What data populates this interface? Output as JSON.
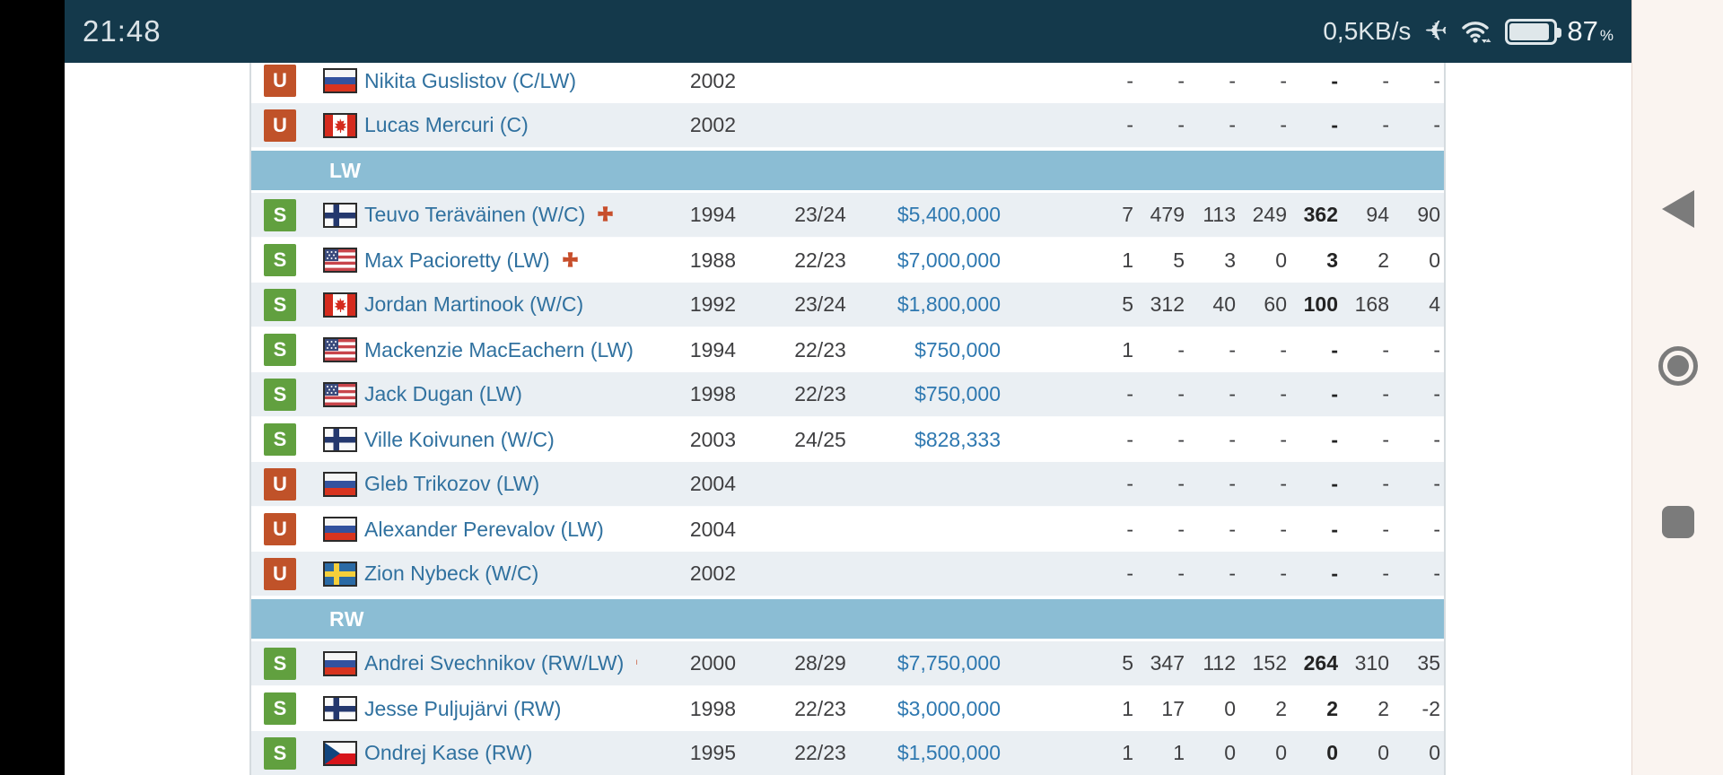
{
  "status_bar": {
    "time": "21:48",
    "network_speed": "0,5KB/s",
    "icons": [
      "airplane-icon",
      "wifi-icon",
      "battery-icon"
    ],
    "battery_percent": "87",
    "percent_sign": "%"
  },
  "nav_bar": {
    "buttons": [
      {
        "name": "back"
      },
      {
        "name": "home"
      },
      {
        "name": "recents"
      }
    ]
  },
  "colors": {
    "statusbar_bg": "#14394b",
    "section_header_bg": "#8bbdd4",
    "row_alt_bg": "#eaeff3",
    "badge_signed": "#61a03f",
    "badge_unsigned": "#c05229",
    "player_name_link": "#30719f",
    "salary_text": "#2e78b0",
    "injury_cross": "#c74e2b"
  },
  "table": {
    "rows": [
      {
        "type": "player",
        "shade": "white",
        "status": "U",
        "nation": "ru",
        "name": "Nikita Guslistov (C/LW)",
        "injured": false,
        "year": "2002",
        "contract": "",
        "salary": "",
        "stats": [
          "-",
          "-",
          "-",
          "-",
          "-",
          "-",
          "-"
        ]
      },
      {
        "type": "player",
        "shade": "gray",
        "status": "U",
        "nation": "ca",
        "name": "Lucas Mercuri (C)",
        "injured": false,
        "year": "2002",
        "contract": "",
        "salary": "",
        "stats": [
          "-",
          "-",
          "-",
          "-",
          "-",
          "-",
          "-"
        ]
      },
      {
        "type": "section",
        "label": "LW"
      },
      {
        "type": "player",
        "shade": "gray",
        "status": "S",
        "nation": "fi",
        "name": "Teuvo Teräväinen (W/C)",
        "injured": true,
        "year": "1994",
        "contract": "23/24",
        "salary": "$5,400,000",
        "stats": [
          "7",
          "479",
          "113",
          "249",
          "362",
          "94",
          "90"
        ]
      },
      {
        "type": "player",
        "shade": "white",
        "status": "S",
        "nation": "us",
        "name": "Max Pacioretty (LW)",
        "injured": true,
        "year": "1988",
        "contract": "22/23",
        "salary": "$7,000,000",
        "stats": [
          "1",
          "5",
          "3",
          "0",
          "3",
          "2",
          "0"
        ]
      },
      {
        "type": "player",
        "shade": "gray",
        "status": "S",
        "nation": "ca",
        "name": "Jordan Martinook (W/C)",
        "injured": false,
        "year": "1992",
        "contract": "23/24",
        "salary": "$1,800,000",
        "stats": [
          "5",
          "312",
          "40",
          "60",
          "100",
          "168",
          "4"
        ]
      },
      {
        "type": "player",
        "shade": "white",
        "status": "S",
        "nation": "us",
        "name": "Mackenzie MacEachern (LW)",
        "injured": false,
        "year": "1994",
        "contract": "22/23",
        "salary": "$750,000",
        "stats": [
          "1",
          "-",
          "-",
          "-",
          "-",
          "-",
          "-"
        ]
      },
      {
        "type": "player",
        "shade": "gray",
        "status": "S",
        "nation": "us",
        "name": "Jack Dugan (LW)",
        "injured": false,
        "year": "1998",
        "contract": "22/23",
        "salary": "$750,000",
        "stats": [
          "-",
          "-",
          "-",
          "-",
          "-",
          "-",
          "-"
        ]
      },
      {
        "type": "player",
        "shade": "white",
        "status": "S",
        "nation": "fi",
        "name": "Ville Koivunen (W/C)",
        "injured": false,
        "year": "2003",
        "contract": "24/25",
        "salary": "$828,333",
        "stats": [
          "-",
          "-",
          "-",
          "-",
          "-",
          "-",
          "-"
        ]
      },
      {
        "type": "player",
        "shade": "gray",
        "status": "U",
        "nation": "ru",
        "name": "Gleb Trikozov (LW)",
        "injured": false,
        "year": "2004",
        "contract": "",
        "salary": "",
        "stats": [
          "-",
          "-",
          "-",
          "-",
          "-",
          "-",
          "-"
        ]
      },
      {
        "type": "player",
        "shade": "white",
        "status": "U",
        "nation": "ru",
        "name": "Alexander Perevalov (LW)",
        "injured": false,
        "year": "2004",
        "contract": "",
        "salary": "",
        "stats": [
          "-",
          "-",
          "-",
          "-",
          "-",
          "-",
          "-"
        ]
      },
      {
        "type": "player",
        "shade": "gray",
        "status": "U",
        "nation": "se",
        "name": "Zion Nybeck (W/C)",
        "injured": false,
        "year": "2002",
        "contract": "",
        "salary": "",
        "stats": [
          "-",
          "-",
          "-",
          "-",
          "-",
          "-",
          "-"
        ]
      },
      {
        "type": "section",
        "label": "RW"
      },
      {
        "type": "player",
        "shade": "gray",
        "status": "S",
        "nation": "ru",
        "name": "Andrei Svechnikov (RW/LW)",
        "injured": true,
        "year": "2000",
        "contract": "28/29",
        "salary": "$7,750,000",
        "stats": [
          "5",
          "347",
          "112",
          "152",
          "264",
          "310",
          "35"
        ]
      },
      {
        "type": "player",
        "shade": "white",
        "status": "S",
        "nation": "fi",
        "name": "Jesse Puljujärvi (RW)",
        "injured": false,
        "year": "1998",
        "contract": "22/23",
        "salary": "$3,000,000",
        "stats": [
          "1",
          "17",
          "0",
          "2",
          "2",
          "2",
          "-2"
        ]
      },
      {
        "type": "player",
        "shade": "gray",
        "status": "S",
        "nation": "cz",
        "name": "Ondrej Kase (RW)",
        "injured": false,
        "year": "1995",
        "contract": "22/23",
        "salary": "$1,500,000",
        "stats": [
          "1",
          "1",
          "0",
          "0",
          "0",
          "0",
          "0"
        ]
      }
    ]
  }
}
